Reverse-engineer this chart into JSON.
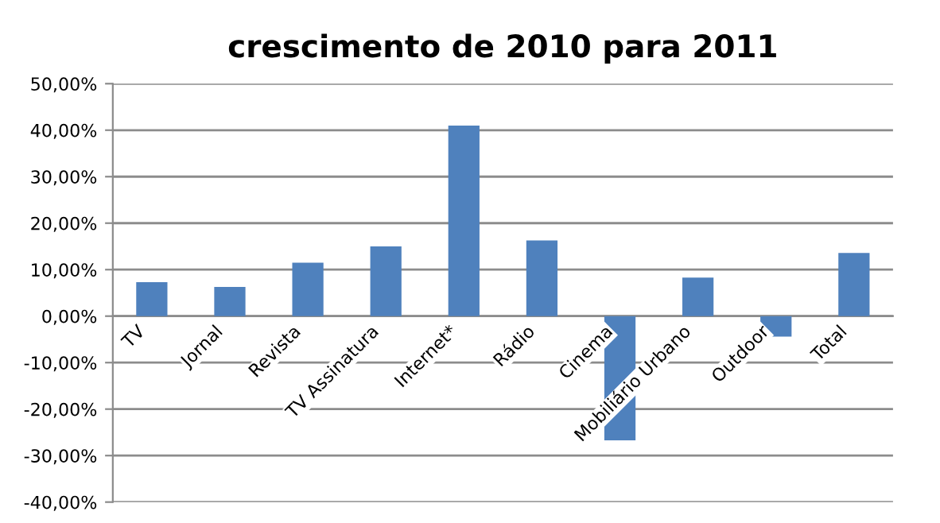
{
  "chart_data": {
    "type": "bar",
    "title": "crescimento de 2010 para 2011",
    "categories": [
      "TV",
      "Jornal",
      "Revista",
      "TV Assinatura",
      "Internet*",
      "Rádio",
      "Cinema",
      "Mobiliário Urbano",
      "Outdoor",
      "Total"
    ],
    "values": [
      7.3,
      6.3,
      11.5,
      15.0,
      41.0,
      16.3,
      -26.7,
      8.3,
      -4.4,
      13.6
    ],
    "color": "#4f81bd",
    "ylim": [
      -40,
      50
    ],
    "yticks": [
      {
        "value": -40,
        "label": "-40,00%"
      },
      {
        "value": -30,
        "label": "-30,00%"
      },
      {
        "value": -20,
        "label": "-20,00%"
      },
      {
        "value": -10,
        "label": "-10,00%"
      },
      {
        "value": 0,
        "label": "0,00%"
      },
      {
        "value": 10,
        "label": "10,00%"
      },
      {
        "value": 20,
        "label": "20,00%"
      },
      {
        "value": 30,
        "label": "30,00%"
      },
      {
        "value": 40,
        "label": "40,00%"
      },
      {
        "value": 50,
        "label": "50,00%"
      }
    ],
    "grid": "y",
    "legend": false
  }
}
